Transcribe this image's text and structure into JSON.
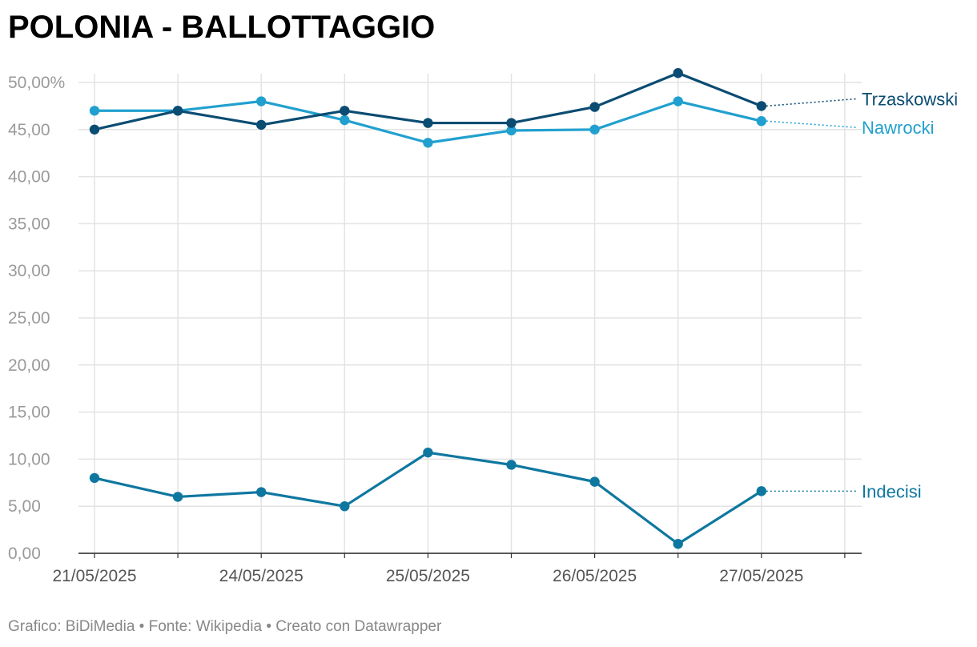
{
  "title": "POLONIA - BALLOTTAGGIO",
  "footer": "Grafico: BiDiMedia • Fonte: Wikipedia • Creato con Datawrapper",
  "chart_data": {
    "type": "line",
    "title": "POLONIA - BALLOTTAGGIO",
    "xlabel": "",
    "ylabel": "",
    "x_tick_labels": [
      "21/05/2025",
      "24/05/2025",
      "25/05/2025",
      "26/05/2025",
      "27/05/2025"
    ],
    "x_tick_positions": [
      0,
      2,
      4,
      6,
      8
    ],
    "point_count": 9,
    "y_tick_labels": [
      "0,00",
      "5,00",
      "10,00",
      "15,00",
      "20,00",
      "25,00",
      "30,00",
      "35,00",
      "40,00",
      "45,00",
      "50,00%"
    ],
    "ylim": [
      0,
      50
    ],
    "grid": true,
    "series": [
      {
        "name": "Trzaskowski",
        "color": "#0b4c72",
        "values": [
          45.0,
          47.0,
          45.5,
          47.0,
          45.7,
          45.7,
          47.4,
          51.0,
          47.5
        ]
      },
      {
        "name": "Nawrocki",
        "color": "#21a0cf",
        "values": [
          47.0,
          47.0,
          48.0,
          46.0,
          43.6,
          44.9,
          45.0,
          48.0,
          45.9
        ]
      },
      {
        "name": "Indecisi",
        "color": "#0e77a0",
        "values": [
          8.0,
          6.0,
          6.5,
          5.0,
          10.7,
          9.4,
          7.6,
          1.0,
          6.6
        ]
      }
    ]
  }
}
